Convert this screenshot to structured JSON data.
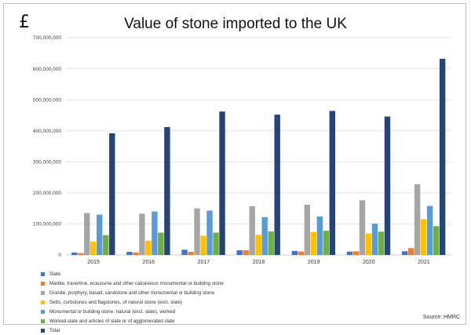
{
  "currency_symbol": "£",
  "source_note": "Source: HMRC",
  "chart_data": {
    "type": "bar",
    "title": "Value of stone imported to the UK",
    "xlabel": "",
    "ylabel": "",
    "ylim": [
      0,
      700000000
    ],
    "yticks": [
      "0",
      "100,000,000",
      "200,000,000",
      "300,000,000",
      "400,000,000",
      "500,000,000",
      "600,000,000",
      "700,000,000"
    ],
    "grid": true,
    "legend_position": "bottom",
    "categories": [
      "2015",
      "2016",
      "2017",
      "2018",
      "2019",
      "2020",
      "2021"
    ],
    "series": [
      {
        "name": "Slate",
        "color": "#4472c4",
        "values": [
          8000000,
          10000000,
          17000000,
          15000000,
          13000000,
          11000000,
          12000000
        ]
      },
      {
        "name": "Marble, travertine, ecaussine and other calcareous monumental or building stone",
        "color": "#ed7d31",
        "values": [
          6000000,
          8000000,
          10000000,
          15000000,
          11000000,
          12000000,
          22000000
        ]
      },
      {
        "name": "Granite, porphyry, basalt, sandstone and other monumental or building stone",
        "color": "#a5a5a5",
        "values": [
          135000000,
          133000000,
          150000000,
          157000000,
          162000000,
          176000000,
          228000000
        ]
      },
      {
        "name": "Setts, curbstones and flagstones, of natural stone (excl. slate)",
        "color": "#ffc000",
        "values": [
          43000000,
          46000000,
          62000000,
          65000000,
          74000000,
          69000000,
          115000000
        ]
      },
      {
        "name": "Monumental or building stone, natural (excl. slate), worked",
        "color": "#5b9bd5",
        "values": [
          130000000,
          140000000,
          143000000,
          122000000,
          124000000,
          101000000,
          158000000
        ]
      },
      {
        "name": "Worked slate and articles of slate or of agglomerated slate",
        "color": "#70ad47",
        "values": [
          64000000,
          72000000,
          72000000,
          76000000,
          78000000,
          75000000,
          93000000
        ]
      },
      {
        "name": "Total",
        "color": "#264478",
        "values": [
          392000000,
          412000000,
          462000000,
          452000000,
          464000000,
          446000000,
          632000000
        ]
      }
    ]
  }
}
